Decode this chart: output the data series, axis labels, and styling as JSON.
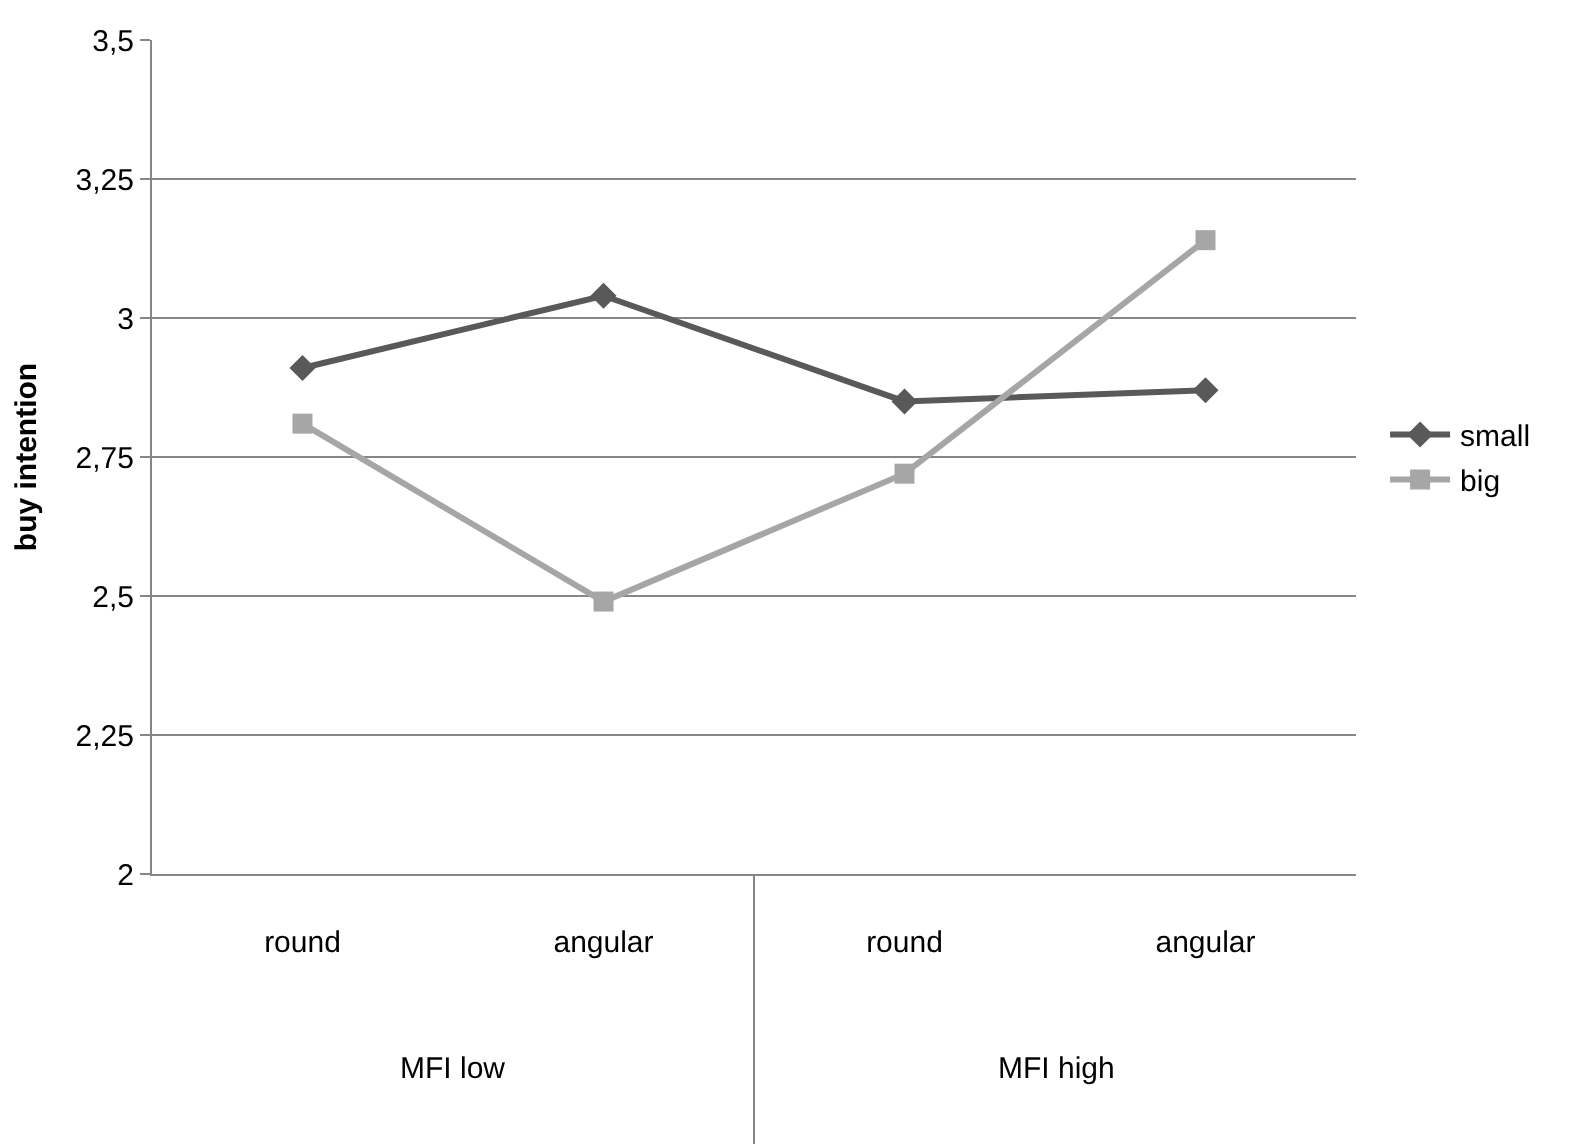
{
  "chart_data": {
    "type": "line",
    "ylabel": "buy intention",
    "categories": [
      "round",
      "angular",
      "round",
      "angular"
    ],
    "series": [
      {
        "name": "small",
        "color": "#595959",
        "marker": "diamond",
        "values": [
          2.91,
          3.04,
          2.85,
          2.87
        ]
      },
      {
        "name": "big",
        "color": "#a6a6a6",
        "marker": "square",
        "values": [
          2.81,
          2.49,
          2.72,
          3.14
        ]
      }
    ],
    "annotations": [
      "MFI low",
      "MFI high"
    ],
    "ylim": [
      2,
      3.5
    ],
    "yticks": [
      2,
      {
        "value": 2.25,
        "label": "2,25"
      },
      {
        "value": 2.5,
        "label": "2,5"
      },
      {
        "value": 2.75,
        "label": "2,75"
      },
      3,
      {
        "value": 3.25,
        "label": "3,25"
      },
      {
        "value": 3.5,
        "label": "3,5"
      }
    ],
    "grid": "y",
    "legend": "right",
    "line_style": "solid"
  }
}
